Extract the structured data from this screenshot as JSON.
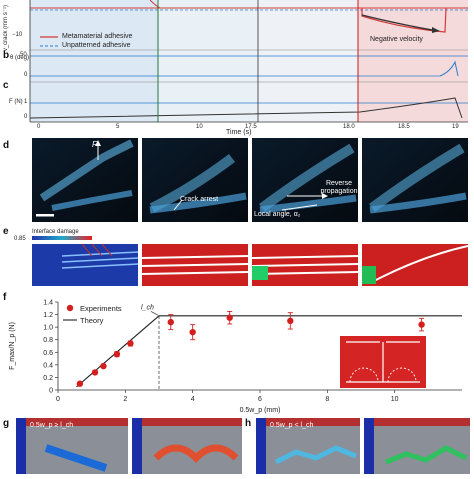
{
  "panel_labels": {
    "b": "b",
    "c": "c",
    "d": "d",
    "e": "e",
    "f": "f",
    "g": "g",
    "h": "h"
  },
  "panel_a": {
    "y_label": "v_crack (mm s⁻¹)",
    "y_tick_min": "−10",
    "legend": [
      "Metamaterial adhesive",
      "Unpatterned adhesive"
    ],
    "annotation": "Negative velocity"
  },
  "panel_b": {
    "y_label": "θ (deg)",
    "ticks": [
      "50",
      "0"
    ]
  },
  "panel_c": {
    "y_label": "F (N)",
    "ticks": [
      "1",
      "0"
    ]
  },
  "time_axis": {
    "label": "Time (s)",
    "ticks": [
      "0",
      "5",
      "10",
      "17.5",
      "18.0",
      "18.5",
      "19"
    ]
  },
  "panel_d": {
    "force_label": "F",
    "crack_arrest": "Crack arrest",
    "reverse_propagation": "Reverse propagation",
    "local_angle": "Local angle, α₂"
  },
  "panel_e": {
    "colorbar_title": "Interface damage",
    "colorbar_value": "0.85"
  },
  "chart_data": {
    "type": "scatter",
    "xlabel": "0.5w_p (mm)",
    "ylabel": "F_max/N_p (N)",
    "xlim": [
      0,
      12
    ],
    "ylim": [
      0,
      1.4
    ],
    "x_ticks": [
      "0",
      "2",
      "4",
      "6",
      "8",
      "10"
    ],
    "y_ticks": [
      "0",
      "0.2",
      "0.4",
      "0.6",
      "0.8",
      "1.0",
      "1.2",
      "1.4"
    ],
    "legend": [
      "Experiments",
      "Theory"
    ],
    "annotation": "l_ch",
    "series": [
      {
        "name": "Experiments",
        "points": [
          {
            "x": 0.65,
            "y": 0.1,
            "err": 0.02
          },
          {
            "x": 1.1,
            "y": 0.28,
            "err": 0.03
          },
          {
            "x": 1.35,
            "y": 0.38,
            "err": 0.03
          },
          {
            "x": 1.75,
            "y": 0.57,
            "err": 0.04
          },
          {
            "x": 2.15,
            "y": 0.74,
            "err": 0.04
          },
          {
            "x": 3.35,
            "y": 1.08,
            "err": 0.12
          },
          {
            "x": 4.0,
            "y": 0.92,
            "err": 0.12
          },
          {
            "x": 5.1,
            "y": 1.15,
            "err": 0.1
          },
          {
            "x": 6.9,
            "y": 1.1,
            "err": 0.13
          },
          {
            "x": 10.8,
            "y": 1.04,
            "err": 0.1
          }
        ]
      },
      {
        "name": "Theory",
        "points": [
          {
            "x": 0.55,
            "y": 0.05
          },
          {
            "x": 3.0,
            "y": 1.18
          },
          {
            "x": 12.0,
            "y": 1.18
          }
        ]
      }
    ],
    "l_ch_x": 3.0
  },
  "panel_g": {
    "condition": "0.5w_p ≥ l_ch"
  },
  "panel_h": {
    "condition": "0.5w_p < l_ch"
  },
  "colors": {
    "metamaterial": "#d23a3a",
    "unpatterned": "#2b7bd0",
    "experiment": "#d41f1f"
  }
}
